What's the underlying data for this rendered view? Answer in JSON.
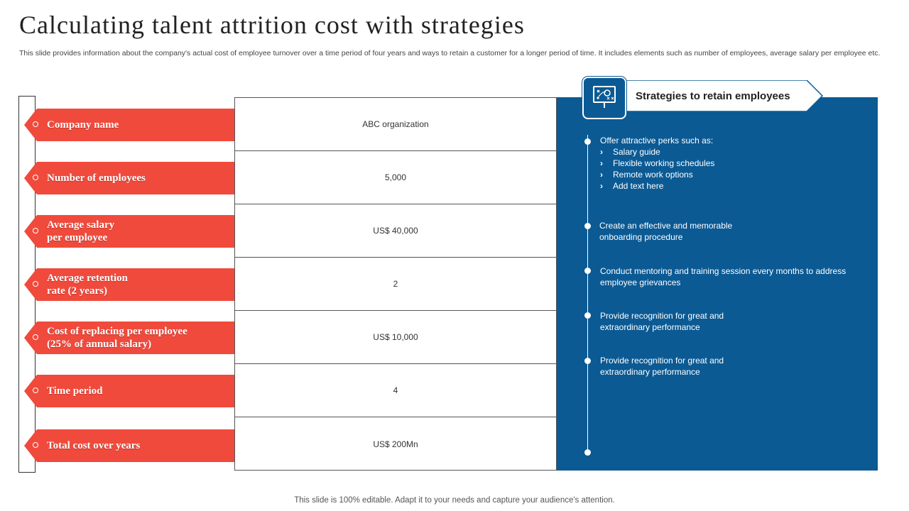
{
  "title": "Calculating talent attrition cost with strategies",
  "subtitle": "This slide provides information about the company's actual cost of employee turnover over a time period of four years and ways to retain a customer for a longer period of time. It includes elements such as number of employees, average salary per employee etc.",
  "rows": [
    {
      "label": "Company name",
      "value": "ABC organization"
    },
    {
      "label": "Number of employees",
      "value": "5,000"
    },
    {
      "label": "Average salary\nper employee",
      "value": "US$ 40,000"
    },
    {
      "label": "Average retention\nrate (2 years)",
      "value": "2"
    },
    {
      "label": "Cost of replacing per employee\n(25% of annual salary)",
      "value": "US$ 10,000"
    },
    {
      "label": "Time period",
      "value": "4"
    },
    {
      "label": "Total cost over years",
      "value": "US$ 200Mn"
    }
  ],
  "strategies": {
    "header": "Strategies to retain employees",
    "header_icon": "strategy-board-icon",
    "items": [
      {
        "text": "Offer attractive perks such as:",
        "subitems": [
          "Salary guide",
          "Flexible working schedules",
          "Remote work options",
          "Add text here"
        ]
      },
      {
        "text": "Create an effective and memorable\nonboarding procedure"
      },
      {
        "text": "Conduct mentoring and training session every months to address\nemployee grievances"
      },
      {
        "text": "Provide recognition for great and\nextraordinary performance"
      },
      {
        "text": "Provide recognition for great and\nextraordinary performance"
      }
    ]
  },
  "footer": "This slide is 100% editable. Adapt it to your needs and capture your audience's attention.",
  "colors": {
    "accent_red": "#f04a3c",
    "panel_blue": "#0b5a94"
  }
}
